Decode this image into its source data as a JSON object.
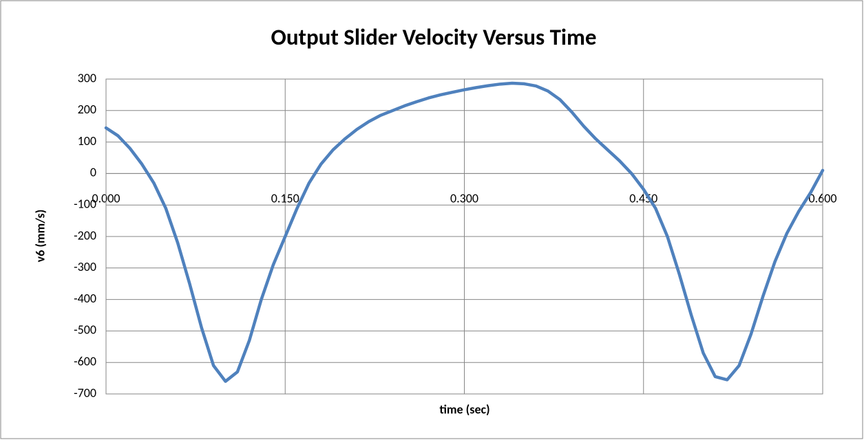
{
  "chart_data": {
    "type": "line",
    "title": "Output Slider Velocity  Versus Time",
    "xlabel": "time (sec)",
    "ylabel": "v6 (mm/s)",
    "x": [
      0,
      0.01,
      0.02,
      0.03,
      0.04,
      0.05,
      0.06,
      0.07,
      0.08,
      0.09,
      0.1,
      0.11,
      0.12,
      0.13,
      0.14,
      0.15,
      0.16,
      0.17,
      0.18,
      0.19,
      0.2,
      0.21,
      0.22,
      0.23,
      0.24,
      0.25,
      0.26,
      0.27,
      0.28,
      0.29,
      0.3,
      0.31,
      0.32,
      0.33,
      0.34,
      0.35,
      0.36,
      0.37,
      0.38,
      0.39,
      0.4,
      0.41,
      0.42,
      0.43,
      0.44,
      0.45,
      0.46,
      0.47,
      0.48,
      0.49,
      0.5,
      0.51,
      0.52,
      0.53,
      0.54,
      0.55,
      0.56,
      0.57,
      0.58,
      0.59,
      0.6
    ],
    "series": [
      {
        "name": "v6",
        "color": "#4f81bd",
        "values": [
          145,
          120,
          80,
          30,
          -30,
          -110,
          -220,
          -350,
          -490,
          -610,
          -660,
          -630,
          -530,
          -400,
          -290,
          -200,
          -110,
          -30,
          30,
          75,
          110,
          140,
          165,
          185,
          200,
          215,
          228,
          240,
          250,
          258,
          266,
          273,
          279,
          284,
          287,
          285,
          278,
          262,
          235,
          195,
          150,
          110,
          75,
          40,
          0,
          -50,
          -110,
          -200,
          -320,
          -450,
          -570,
          -645,
          -655,
          -610,
          -510,
          -390,
          -280,
          -190,
          -120,
          -60,
          10
        ]
      }
    ],
    "xlim": [
      0,
      0.6
    ],
    "xticks": [
      {
        "value": 0,
        "label": "0.000"
      },
      {
        "value": 0.15,
        "label": "0.150"
      },
      {
        "value": 0.3,
        "label": "0.300"
      },
      {
        "value": 0.45,
        "label": "0.450"
      },
      {
        "value": 0.6,
        "label": "0.600"
      }
    ],
    "ylim": [
      -700,
      300
    ],
    "yticks": [
      -700,
      -600,
      -500,
      -400,
      -300,
      -200,
      -100,
      0,
      100,
      200,
      300
    ],
    "grid": true
  }
}
